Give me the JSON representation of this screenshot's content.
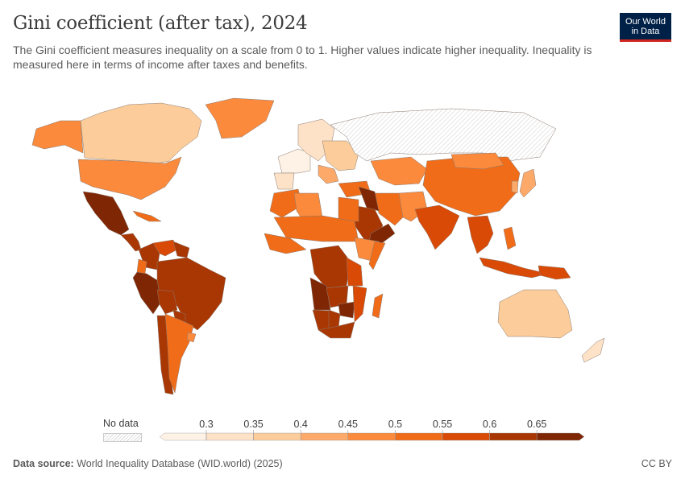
{
  "header": {
    "title": "Gini coefficient (after tax), 2024",
    "subtitle": "The Gini coefficient measures inequality on a scale from 0 to 1. Higher values indicate higher inequality. Inequality is measured here in terms of income after taxes and benefits.",
    "logo_line1": "Our World",
    "logo_line2": "in Data"
  },
  "legend": {
    "no_data_label": "No data",
    "ticks": [
      "0.3",
      "0.35",
      "0.4",
      "0.45",
      "0.5",
      "0.55",
      "0.6",
      "0.65"
    ],
    "bins": [
      {
        "range": "<0.3",
        "color": "#fef2e6"
      },
      {
        "range": "0.3-0.35",
        "color": "#fde2c8"
      },
      {
        "range": "0.35-0.4",
        "color": "#fccd9b"
      },
      {
        "range": "0.4-0.45",
        "color": "#fca96a"
      },
      {
        "range": "0.45-0.5",
        "color": "#fb8a3c"
      },
      {
        "range": "0.5-0.55",
        "color": "#f06c19"
      },
      {
        "range": "0.55-0.6",
        "color": "#d84a05"
      },
      {
        "range": "0.6-0.65",
        "color": "#a93703"
      },
      {
        "range": ">0.65",
        "color": "#7f2704"
      }
    ],
    "no_data_color": "#e8e8e8"
  },
  "footer": {
    "source_label": "Data source:",
    "source_text": "World Inequality Database (WID.world) (2025)",
    "license": "CC BY"
  },
  "chart_data": {
    "type": "choropleth",
    "title": "Gini coefficient (after tax), 2024",
    "metric": "Gini coefficient (after tax)",
    "year": 2024,
    "scale_breaks": [
      0.3,
      0.35,
      0.4,
      0.45,
      0.5,
      0.55,
      0.6,
      0.65
    ],
    "regions": [
      {
        "name": "Canada",
        "bin": 2
      },
      {
        "name": "United States",
        "bin": 4
      },
      {
        "name": "Alaska",
        "bin": 4
      },
      {
        "name": "Greenland",
        "bin": 4
      },
      {
        "name": "Mexico",
        "bin": 8
      },
      {
        "name": "Central America",
        "bin": 7
      },
      {
        "name": "Cuba",
        "bin": 5
      },
      {
        "name": "Colombia",
        "bin": 7
      },
      {
        "name": "Venezuela",
        "bin": 6
      },
      {
        "name": "Guyana/Suriname",
        "bin": 7
      },
      {
        "name": "Ecuador",
        "bin": 5
      },
      {
        "name": "Peru",
        "bin": 8
      },
      {
        "name": "Brazil",
        "bin": 7
      },
      {
        "name": "Bolivia",
        "bin": 7
      },
      {
        "name": "Paraguay",
        "bin": 7
      },
      {
        "name": "Chile",
        "bin": 7
      },
      {
        "name": "Argentina",
        "bin": 5
      },
      {
        "name": "Uruguay",
        "bin": 4
      },
      {
        "name": "Western Europe",
        "bin": 0
      },
      {
        "name": "Central Europe",
        "bin": 1
      },
      {
        "name": "Eastern Europe",
        "bin": 2
      },
      {
        "name": "Iberia",
        "bin": 1
      },
      {
        "name": "Balkans",
        "bin": 3
      },
      {
        "name": "Russia",
        "bin": null
      },
      {
        "name": "Kazakhstan",
        "bin": 4
      },
      {
        "name": "Turkey",
        "bin": 5
      },
      {
        "name": "Iran",
        "bin": 5
      },
      {
        "name": "Iraq",
        "bin": 8
      },
      {
        "name": "Saudi Arabia",
        "bin": 7
      },
      {
        "name": "Yemen/Oman",
        "bin": 8
      },
      {
        "name": "Afghanistan/Pakistan",
        "bin": 4
      },
      {
        "name": "India",
        "bin": 6
      },
      {
        "name": "China",
        "bin": 5
      },
      {
        "name": "Mongolia",
        "bin": 4
      },
      {
        "name": "Japan",
        "bin": 3
      },
      {
        "name": "Korea",
        "bin": 3
      },
      {
        "name": "Southeast Asia",
        "bin": 6
      },
      {
        "name": "Indonesia",
        "bin": 6
      },
      {
        "name": "Philippines",
        "bin": 5
      },
      {
        "name": "Papua New Guinea",
        "bin": 6
      },
      {
        "name": "Australia",
        "bin": 2
      },
      {
        "name": "New Zealand",
        "bin": 1
      },
      {
        "name": "North Africa",
        "bin": 5
      },
      {
        "name": "Algeria",
        "bin": 4
      },
      {
        "name": "Egypt",
        "bin": 5
      },
      {
        "name": "Sahel",
        "bin": 5
      },
      {
        "name": "West Africa",
        "bin": 5
      },
      {
        "name": "Ethiopia",
        "bin": 4
      },
      {
        "name": "Somalia",
        "bin": 5
      },
      {
        "name": "DR Congo",
        "bin": 7
      },
      {
        "name": "Angola",
        "bin": 8
      },
      {
        "name": "Tanzania",
        "bin": 6
      },
      {
        "name": "Zambia",
        "bin": 7
      },
      {
        "name": "Zimbabwe",
        "bin": 8
      },
      {
        "name": "Namibia",
        "bin": 7
      },
      {
        "name": "Botswana",
        "bin": 7
      },
      {
        "name": "South Africa",
        "bin": 7
      },
      {
        "name": "Mozambique",
        "bin": 6
      },
      {
        "name": "Madagascar",
        "bin": 5
      }
    ]
  }
}
